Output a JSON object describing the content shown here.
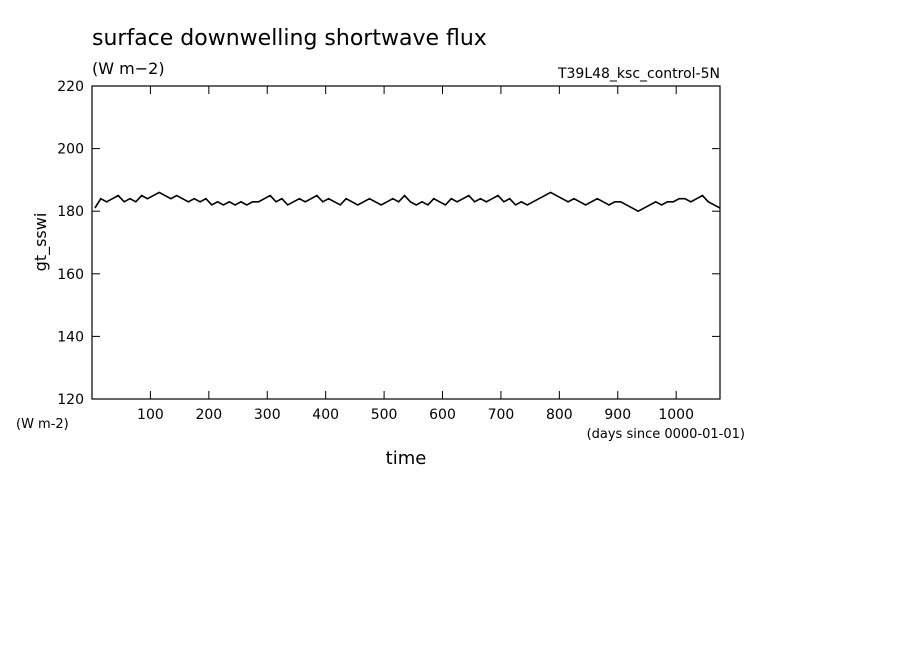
{
  "chart_data": {
    "type": "line",
    "title": "surface downwelling shortwave flux",
    "subtitle": "(W m−2)",
    "run_label": "T39L48_ksc_control-5N",
    "y_label": "gt_sswi",
    "y_unit": "(W m-2)",
    "x_unit": "(days since 0000-01-01)",
    "x_label": "time",
    "x": [
      5,
      15,
      25,
      35,
      45,
      55,
      65,
      75,
      85,
      95,
      105,
      115,
      125,
      135,
      145,
      155,
      165,
      175,
      185,
      195,
      205,
      215,
      225,
      235,
      245,
      255,
      265,
      275,
      285,
      295,
      305,
      315,
      325,
      335,
      345,
      355,
      365,
      375,
      385,
      395,
      405,
      415,
      425,
      435,
      445,
      455,
      465,
      475,
      485,
      495,
      505,
      515,
      525,
      535,
      545,
      555,
      565,
      575,
      585,
      595,
      605,
      615,
      625,
      635,
      645,
      655,
      665,
      675,
      685,
      695,
      705,
      715,
      725,
      735,
      745,
      755,
      765,
      775,
      785,
      795,
      805,
      815,
      825,
      835,
      845,
      855,
      865,
      875,
      885,
      895,
      905,
      915,
      925,
      935,
      945,
      955,
      965,
      975,
      985,
      995,
      1005,
      1015,
      1025,
      1035,
      1045,
      1055,
      1065,
      1075
    ],
    "series": [
      {
        "color": "#000000",
        "values": [
          181,
          184,
          183,
          184,
          185,
          183,
          184,
          183,
          185,
          184,
          185,
          186,
          185,
          184,
          185,
          184,
          183,
          184,
          183,
          184,
          182,
          183,
          182,
          183,
          182,
          183,
          182,
          183,
          183,
          184,
          185,
          183,
          184,
          182,
          183,
          184,
          183,
          184,
          185,
          183,
          184,
          183,
          182,
          184,
          183,
          182,
          183,
          184,
          183,
          182,
          183,
          184,
          183,
          185,
          183,
          182,
          183,
          182,
          184,
          183,
          182,
          184,
          183,
          184,
          185,
          183,
          184,
          183,
          184,
          185,
          183,
          184,
          182,
          183,
          182,
          183,
          184,
          185,
          186,
          185,
          184,
          183,
          184,
          183,
          182,
          183,
          184,
          183,
          182,
          183,
          183,
          182,
          181,
          180,
          181,
          182,
          183,
          182,
          183,
          183,
          184,
          184,
          183,
          184,
          185,
          183,
          182,
          181
        ]
      }
    ],
    "xlim": [
      0,
      1075
    ],
    "ylim": [
      120,
      220
    ],
    "xticks": [
      100,
      200,
      300,
      400,
      500,
      600,
      700,
      800,
      900,
      1000
    ],
    "yticks": [
      120,
      140,
      160,
      180,
      200,
      220
    ]
  }
}
